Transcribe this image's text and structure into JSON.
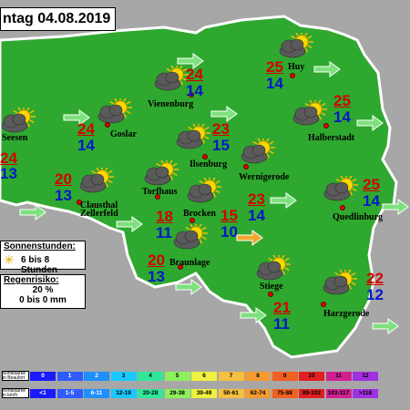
{
  "title": "ntag 04.08.2019",
  "colors": {
    "land": "#2fa82f",
    "outline": "#ffffff",
    "tmax": "#d40000",
    "tmin": "#0018c8",
    "arrow_green": "#7ee07e",
    "arrow_orange": "#f0a830",
    "city_dot": "#e00000"
  },
  "cities": [
    {
      "name": "Seesen",
      "max": "24",
      "min": "13",
      "weather": "partly-cloudy"
    },
    {
      "name": "Goslar",
      "max": "24",
      "min": "14",
      "weather": "partly-cloudy"
    },
    {
      "name": "Vienenburg",
      "max": "24",
      "min": "14",
      "weather": "partly-cloudy"
    },
    {
      "name": "Huy",
      "max": "25",
      "min": "14",
      "weather": "partly-cloudy"
    },
    {
      "name": "Halberstadt",
      "max": "25",
      "min": "14",
      "weather": "partly-cloudy"
    },
    {
      "name": "Ilsenburg",
      "max": "23",
      "min": "15",
      "weather": "partly-cloudy"
    },
    {
      "name": "Wernigerode",
      "max": "",
      "min": "",
      "weather": "partly-cloudy"
    },
    {
      "name": "Clausthal Zellerfeld",
      "max": "20",
      "min": "13",
      "weather": "partly-cloudy"
    },
    {
      "name": "Torfhaus",
      "max": "18",
      "min": "11",
      "weather": "partly-cloudy"
    },
    {
      "name": "Brocken",
      "max": "15",
      "min": "10",
      "weather": "partly-cloudy"
    },
    {
      "name": "",
      "max": "23",
      "min": "14",
      "weather": ""
    },
    {
      "name": "Quedlinburg",
      "max": "25",
      "min": "14",
      "weather": "partly-cloudy"
    },
    {
      "name": "Braunlage",
      "max": "20",
      "min": "13",
      "weather": "partly-cloudy"
    },
    {
      "name": "Stiege",
      "max": "21",
      "min": "11",
      "weather": "partly-cloudy"
    },
    {
      "name": "Harzgerode",
      "max": "22",
      "min": "12",
      "weather": "partly-cloudy"
    }
  ],
  "sunshine": {
    "heading": "Sonnenstunden:",
    "value": "6 bis 8 Stunden",
    "icon": "sun-icon"
  },
  "rain": {
    "heading": "Regenrisiko:",
    "percent": "20 %",
    "amount": "0 bis 0 mm"
  },
  "wind_legend": {
    "label_beaufort": "Windstärke in Beaufort",
    "label_kmh": "Windstärke in km/h",
    "beaufort": [
      "0",
      "1",
      "2",
      "3",
      "4",
      "5",
      "6",
      "7",
      "8",
      "9",
      "10",
      "11",
      "12"
    ],
    "kmh": [
      "<1",
      "1-5",
      "6-11",
      "12-19",
      "20-28",
      "29-38",
      "39-49",
      "50-61",
      "62-74",
      "75-88",
      "89-102",
      "103-117",
      ">118"
    ],
    "colors": [
      "#1a1aff",
      "#2e5cff",
      "#1f8fff",
      "#19c8ff",
      "#2ee89a",
      "#8ef05c",
      "#f0f040",
      "#f5c040",
      "#f59a30",
      "#f06020",
      "#e02020",
      "#d02090",
      "#a030e0"
    ]
  }
}
